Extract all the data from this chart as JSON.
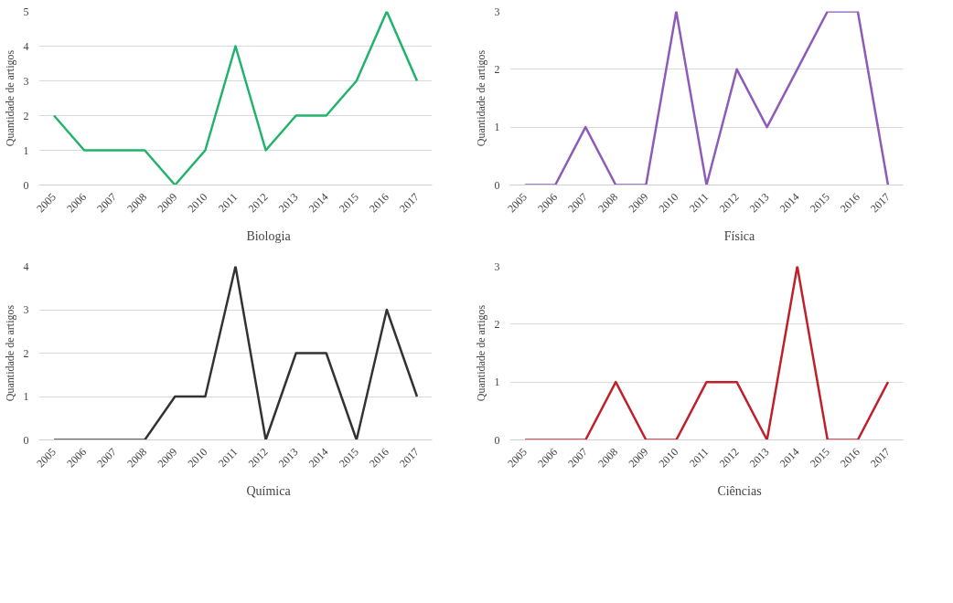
{
  "chart_data": [
    {
      "type": "line",
      "ylabel": "Quantidade de artigos",
      "categories": [
        "2005",
        "2006",
        "2007",
        "2008",
        "2009",
        "2010",
        "2011",
        "2012",
        "2013",
        "2014",
        "2015",
        "2016",
        "2017"
      ],
      "ylim": [
        0,
        5
      ],
      "yticks": [
        0,
        1,
        2,
        3,
        4,
        5
      ],
      "grid": "y",
      "legend": "bottom",
      "marker": "none",
      "line_style": "solid",
      "series": [
        {
          "name": "Biologia",
          "color": "#21b36b",
          "values": [
            2,
            1,
            1,
            1,
            0,
            1,
            4,
            1,
            2,
            2,
            3,
            5,
            3
          ]
        }
      ]
    },
    {
      "type": "line",
      "ylabel": "Quantidade de artigos",
      "categories": [
        "2005",
        "2006",
        "2007",
        "2008",
        "2009",
        "2010",
        "2011",
        "2012",
        "2013",
        "2014",
        "2015",
        "2016",
        "2017"
      ],
      "ylim": [
        0,
        3
      ],
      "yticks": [
        0,
        1,
        2,
        3
      ],
      "grid": "y",
      "legend": "bottom",
      "marker": "none",
      "line_style": "solid",
      "series": [
        {
          "name": "Física",
          "color": "#8e5bb8",
          "values": [
            0,
            0,
            1,
            0,
            0,
            3,
            0,
            2,
            1,
            2,
            3,
            3,
            0
          ]
        }
      ]
    },
    {
      "type": "line",
      "ylabel": "Quantidade de artigos",
      "categories": [
        "2005",
        "2006",
        "2007",
        "2008",
        "2009",
        "2010",
        "2011",
        "2012",
        "2013",
        "2014",
        "2015",
        "2016",
        "2017"
      ],
      "ylim": [
        0,
        4
      ],
      "yticks": [
        0,
        1,
        2,
        3,
        4
      ],
      "grid": "y",
      "legend": "bottom",
      "marker": "none",
      "line_style": "solid",
      "series": [
        {
          "name": "Química",
          "color": "#333333",
          "values": [
            0,
            0,
            0,
            0,
            1,
            1,
            4,
            0,
            2,
            2,
            0,
            3,
            1
          ]
        }
      ]
    },
    {
      "type": "line",
      "ylabel": "Quantidade de artigos",
      "categories": [
        "2005",
        "2006",
        "2007",
        "2008",
        "2009",
        "2010",
        "2011",
        "2012",
        "2013",
        "2014",
        "2015",
        "2016",
        "2017"
      ],
      "ylim": [
        0,
        3
      ],
      "yticks": [
        0,
        1,
        2,
        3
      ],
      "grid": "y",
      "legend": "bottom",
      "marker": "none",
      "line_style": "solid",
      "series": [
        {
          "name": "Ciências",
          "color": "#c0202a",
          "values": [
            0,
            0,
            0,
            1,
            0,
            0,
            1,
            1,
            0,
            3,
            0,
            0,
            1
          ]
        }
      ]
    }
  ]
}
